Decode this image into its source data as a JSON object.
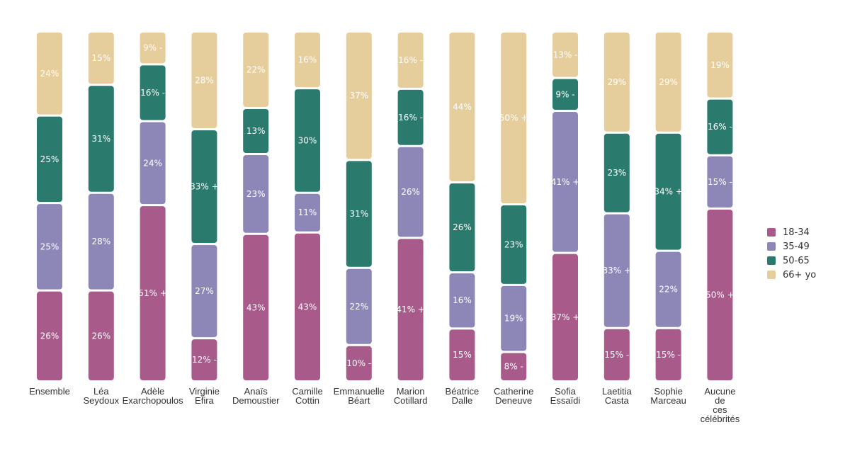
{
  "chart_data": {
    "type": "bar",
    "stacked": true,
    "unit": "%",
    "legend_position": "right",
    "grid": false,
    "categories": [
      [
        "Ensemble"
      ],
      [
        "Léa",
        "Seydoux"
      ],
      [
        "Adèle",
        "Exarchopoulos"
      ],
      [
        "Virginie",
        "Efira"
      ],
      [
        "Anaïs",
        "Demoustier"
      ],
      [
        "Camille",
        "Cottin"
      ],
      [
        "Emmanuelle",
        "Béart"
      ],
      [
        "Marion",
        "Cotillard"
      ],
      [
        "Béatrice",
        "Dalle"
      ],
      [
        "Catherine",
        "Deneuve"
      ],
      [
        "Sofia",
        "Essaïdi"
      ],
      [
        "Laetitia",
        "Casta"
      ],
      [
        "Sophie",
        "Marceau"
      ],
      [
        "Aucune",
        "de",
        "ces",
        "célébrités"
      ]
    ],
    "series": [
      {
        "name": "18-34",
        "color": "#a85a8a",
        "values": [
          26,
          26,
          51,
          12,
          43,
          43,
          10,
          41,
          15,
          8,
          37,
          15,
          15,
          50
        ],
        "markers": [
          "",
          "",
          "+",
          "-",
          "",
          "",
          "-",
          "+",
          "",
          "-",
          "+",
          "-",
          "-",
          "+"
        ]
      },
      {
        "name": "35-49",
        "color": "#8d87b8",
        "values": [
          25,
          28,
          24,
          27,
          23,
          11,
          22,
          26,
          16,
          19,
          41,
          33,
          22,
          15
        ],
        "markers": [
          "",
          "",
          "",
          "",
          "",
          "",
          "",
          "",
          "",
          "",
          "+",
          "+",
          "",
          "-"
        ]
      },
      {
        "name": "50-65",
        "color": "#2a7a6e",
        "values": [
          25,
          31,
          16,
          33,
          13,
          30,
          31,
          16,
          26,
          23,
          9,
          23,
          34,
          16
        ],
        "markers": [
          "",
          "",
          "-",
          "+",
          "",
          "",
          "",
          "-",
          "",
          "",
          "-",
          "",
          "+",
          "-"
        ]
      },
      {
        "name": "66+ yo",
        "color": "#e6cd9c",
        "values": [
          24,
          15,
          9,
          28,
          22,
          16,
          37,
          16,
          44,
          50,
          13,
          29,
          29,
          19
        ],
        "markers": [
          "",
          "",
          "-",
          "",
          "",
          "",
          "",
          "-",
          "",
          "+",
          "-",
          "",
          "",
          ""
        ]
      }
    ]
  }
}
